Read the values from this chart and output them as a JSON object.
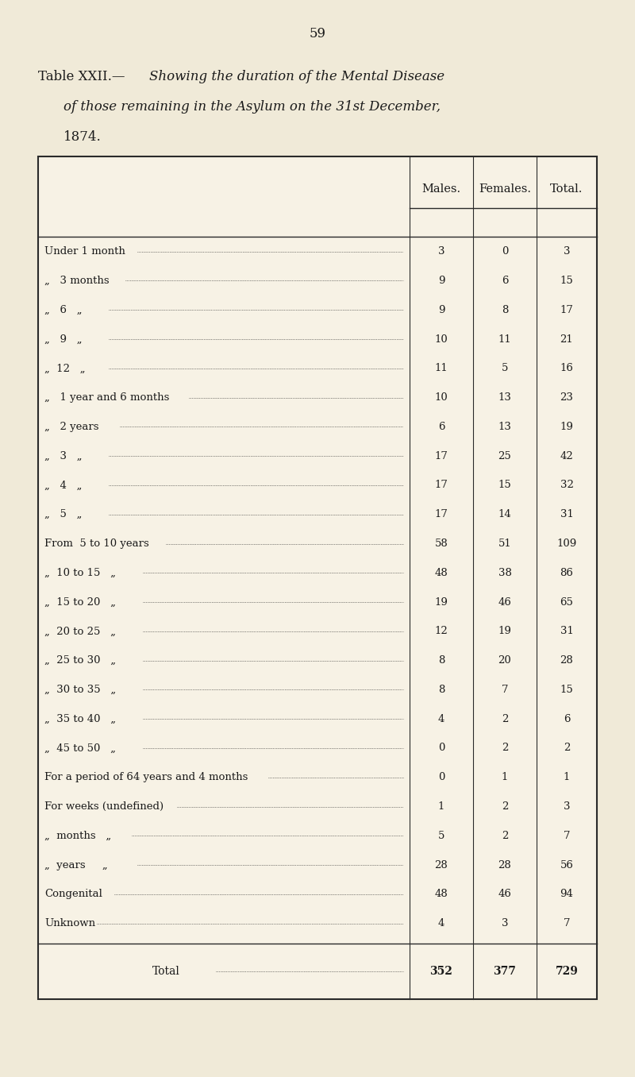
{
  "page_number": "59",
  "title_line1": "Table XXII.—",
  "title_italic": "Showing the duration of the Mental Disease",
  "title_line2": "  of those remaining in the Asylum on the 31st December,",
  "title_line3": "  1874.",
  "col_headers": [
    "Males.",
    "Females.",
    "Total."
  ],
  "rows": [
    [
      "Under 1 month ",
      3,
      0,
      3
    ],
    [
      "„ 3 months",
      9,
      6,
      15
    ],
    [
      "„ 6 „ ",
      9,
      8,
      17
    ],
    [
      "„ 9 „ ",
      10,
      11,
      21
    ],
    [
      "„ 12 „ ",
      11,
      5,
      16
    ],
    [
      "„ 1 year and 6 months ",
      10,
      13,
      23
    ],
    [
      "„ 2 years",
      6,
      13,
      19
    ],
    [
      "„ 3 „ ",
      17,
      25,
      42
    ],
    [
      "„ 4 „ ",
      17,
      15,
      32
    ],
    [
      "„ 5 „ ",
      17,
      14,
      31
    ],
    [
      "From  5 to 10 years ",
      58,
      51,
      109
    ],
    [
      "„ 10 to 15 „ ",
      48,
      38,
      86
    ],
    [
      "„ 15 to 20 „ ",
      19,
      46,
      65
    ],
    [
      "„ 20 to 25 „ ",
      12,
      19,
      31
    ],
    [
      "„ 25 to 30 „ ",
      8,
      20,
      28
    ],
    [
      "„ 30 to 35 „ ",
      8,
      7,
      15
    ],
    [
      "„ 35 to 40 „ ",
      4,
      2,
      6
    ],
    [
      "„ 45 to 50 „ ",
      0,
      2,
      2
    ],
    [
      "For a period of 64 years and 4 months ",
      0,
      1,
      1
    ],
    [
      "For weeks (undefined) ",
      1,
      2,
      3
    ],
    [
      "„ months „ ",
      5,
      2,
      7
    ],
    [
      "„ years „ ",
      28,
      28,
      56
    ],
    [
      "Congenital ",
      48,
      46,
      94
    ],
    [
      "Unknown ",
      4,
      3,
      7
    ]
  ],
  "total_row": [
    "Total ",
    352,
    377,
    729
  ],
  "bg_color": "#f0ead8",
  "text_color": "#1a1a1a",
  "table_bg": "#f7f2e5",
  "border_color": "#2a2a2a"
}
